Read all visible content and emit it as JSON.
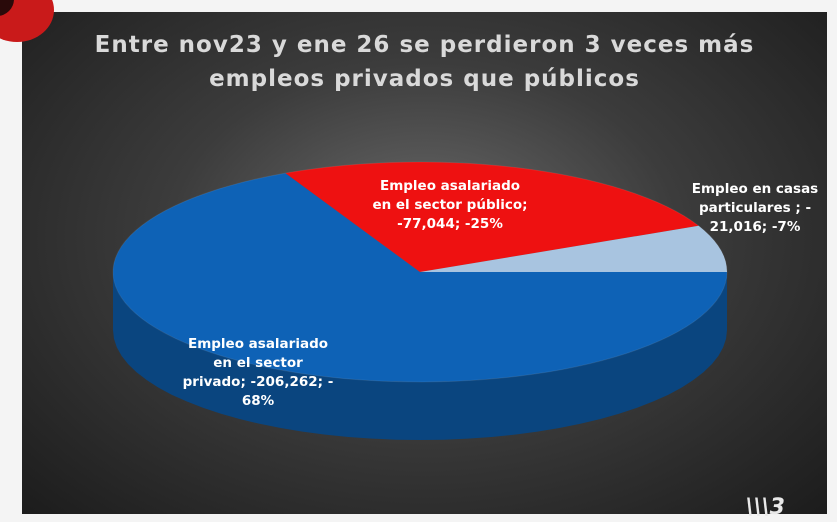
{
  "chart_data": {
    "type": "pie",
    "title": "Entre nov23 y ene 26 se perdieron 3 veces más empleos privados que públicos",
    "slices": [
      {
        "name": "Empleo asalariado en el sector privado",
        "value": -206262,
        "percent": 68,
        "color": "#0e62b6",
        "label": "Empleo asalariado\nen el sector\nprivado; -206,262; -\n68%"
      },
      {
        "name": "Empleo asalariado en el sector público",
        "value": -77044,
        "percent": 25,
        "color": "#ee1111",
        "label": "Empleo asalariado\nen el sector público;\n-77,044; -25%"
      },
      {
        "name": "Empleo en casas particulares",
        "value": -21016,
        "percent": 7,
        "color": "#a8c4e0",
        "label": "Empleo en casas\nparticulares ; -\n21,016; -7%"
      }
    ]
  },
  "title_line1": "Entre nov23 y ene 26 se perdieron 3 veces más",
  "title_line2": "empleos privados que públicos"
}
